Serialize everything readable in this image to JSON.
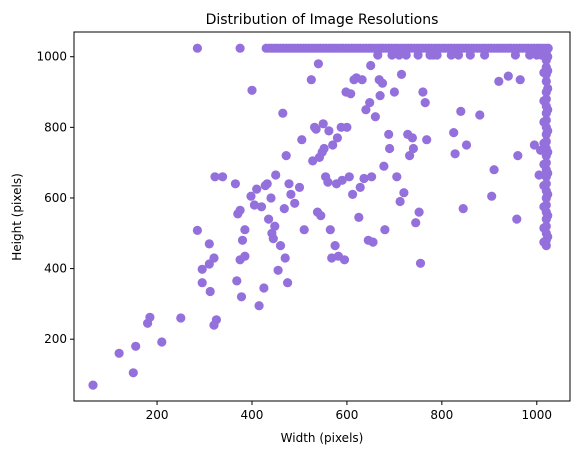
{
  "chart_data": {
    "type": "scatter",
    "title": "Distribution of Image Resolutions",
    "xlabel": "Width (pixels)",
    "ylabel": "Height (pixels)",
    "xlim": [
      25,
      1070
    ],
    "ylim": [
      25,
      1070
    ],
    "xticks": [
      200,
      400,
      600,
      800,
      1000
    ],
    "yticks": [
      200,
      400,
      600,
      800,
      1000
    ],
    "grid": false,
    "legend": "none",
    "marker_color": "#9370DB",
    "series": [
      {
        "points": [
          [
            65,
            70
          ],
          [
            120,
            160
          ],
          [
            150,
            105
          ],
          [
            155,
            180
          ],
          [
            180,
            245
          ],
          [
            185,
            262
          ],
          [
            210,
            192
          ],
          [
            250,
            260
          ],
          [
            285,
            508
          ],
          [
            295,
            360
          ],
          [
            295,
            398
          ],
          [
            310,
            413
          ],
          [
            310,
            470
          ],
          [
            312,
            335
          ],
          [
            320,
            430
          ],
          [
            320,
            240
          ],
          [
            325,
            255
          ],
          [
            322,
            660
          ],
          [
            338,
            660
          ],
          [
            365,
            640
          ],
          [
            368,
            365
          ],
          [
            370,
            555
          ],
          [
            375,
            565
          ],
          [
            375,
            425
          ],
          [
            378,
            320
          ],
          [
            380,
            480
          ],
          [
            385,
            510
          ],
          [
            385,
            435
          ],
          [
            398,
            605
          ],
          [
            400,
            905
          ],
          [
            405,
            580
          ],
          [
            410,
            625
          ],
          [
            415,
            295
          ],
          [
            420,
            575
          ],
          [
            425,
            345
          ],
          [
            428,
            635
          ],
          [
            432,
            640
          ],
          [
            435,
            540
          ],
          [
            440,
            600
          ],
          [
            442,
            500
          ],
          [
            445,
            485
          ],
          [
            448,
            520
          ],
          [
            450,
            665
          ],
          [
            455,
            395
          ],
          [
            460,
            465
          ],
          [
            465,
            840
          ],
          [
            468,
            570
          ],
          [
            470,
            430
          ],
          [
            472,
            720
          ],
          [
            475,
            360
          ],
          [
            478,
            640
          ],
          [
            482,
            610
          ],
          [
            490,
            585
          ],
          [
            500,
            630
          ],
          [
            505,
            765
          ],
          [
            510,
            510
          ],
          [
            525,
            935
          ],
          [
            528,
            705
          ],
          [
            532,
            800
          ],
          [
            535,
            795
          ],
          [
            538,
            560
          ],
          [
            540,
            980
          ],
          [
            542,
            715
          ],
          [
            545,
            550
          ],
          [
            548,
            730
          ],
          [
            550,
            810
          ],
          [
            552,
            740
          ],
          [
            555,
            660
          ],
          [
            560,
            645
          ],
          [
            562,
            790
          ],
          [
            565,
            510
          ],
          [
            568,
            430
          ],
          [
            570,
            750
          ],
          [
            575,
            465
          ],
          [
            578,
            640
          ],
          [
            580,
            770
          ],
          [
            582,
            435
          ],
          [
            588,
            800
          ],
          [
            590,
            650
          ],
          [
            595,
            425
          ],
          [
            598,
            900
          ],
          [
            600,
            800
          ],
          [
            605,
            660
          ],
          [
            608,
            895
          ],
          [
            612,
            610
          ],
          [
            615,
            935
          ],
          [
            620,
            940
          ],
          [
            625,
            545
          ],
          [
            628,
            630
          ],
          [
            632,
            935
          ],
          [
            636,
            655
          ],
          [
            640,
            850
          ],
          [
            645,
            480
          ],
          [
            648,
            870
          ],
          [
            650,
            975
          ],
          [
            652,
            660
          ],
          [
            655,
            475
          ],
          [
            660,
            830
          ],
          [
            665,
            1005
          ],
          [
            668,
            935
          ],
          [
            670,
            890
          ],
          [
            675,
            925
          ],
          [
            678,
            690
          ],
          [
            680,
            510
          ],
          [
            688,
            780
          ],
          [
            690,
            740
          ],
          [
            695,
            1005
          ],
          [
            700,
            900
          ],
          [
            705,
            660
          ],
          [
            710,
            1005
          ],
          [
            712,
            590
          ],
          [
            715,
            950
          ],
          [
            720,
            615
          ],
          [
            725,
            1005
          ],
          [
            728,
            780
          ],
          [
            732,
            720
          ],
          [
            738,
            770
          ],
          [
            740,
            740
          ],
          [
            745,
            530
          ],
          [
            750,
            1005
          ],
          [
            752,
            560
          ],
          [
            755,
            415
          ],
          [
            760,
            900
          ],
          [
            765,
            870
          ],
          [
            768,
            765
          ],
          [
            775,
            1005
          ],
          [
            782,
            1005
          ],
          [
            790,
            1005
          ],
          [
            820,
            1005
          ],
          [
            825,
            785
          ],
          [
            828,
            725
          ],
          [
            835,
            1005
          ],
          [
            840,
            845
          ],
          [
            845,
            570
          ],
          [
            852,
            750
          ],
          [
            860,
            1005
          ],
          [
            880,
            835
          ],
          [
            890,
            1005
          ],
          [
            905,
            605
          ],
          [
            910,
            680
          ],
          [
            920,
            930
          ],
          [
            940,
            945
          ],
          [
            955,
            1005
          ],
          [
            958,
            540
          ],
          [
            960,
            720
          ],
          [
            965,
            935
          ],
          [
            985,
            1005
          ],
          [
            995,
            750
          ],
          [
            1000,
            1005
          ],
          [
            1005,
            665
          ],
          [
            1008,
            735
          ],
          [
            1010,
            1005
          ],
          [
            1015,
            1005
          ],
          [
            1020,
            1010
          ],
          [
            1020,
            990
          ],
          [
            1020,
            970
          ],
          [
            1020,
            950
          ],
          [
            1020,
            930
          ],
          [
            1020,
            900
          ],
          [
            1020,
            880
          ],
          [
            1020,
            860
          ],
          [
            1020,
            840
          ],
          [
            1020,
            820
          ],
          [
            1020,
            800
          ],
          [
            1020,
            780
          ],
          [
            1020,
            760
          ],
          [
            1020,
            740
          ],
          [
            1020,
            720
          ],
          [
            1020,
            700
          ],
          [
            1020,
            680
          ],
          [
            1020,
            660
          ],
          [
            1020,
            640
          ],
          [
            1020,
            620
          ],
          [
            1020,
            600
          ],
          [
            1020,
            580
          ],
          [
            1020,
            560
          ],
          [
            1020,
            540
          ],
          [
            1020,
            520
          ],
          [
            1020,
            500
          ],
          [
            1020,
            480
          ],
          [
            1020,
            465
          ],
          [
            1023,
            1000
          ],
          [
            1023,
            960
          ],
          [
            1023,
            910
          ],
          [
            1023,
            850
          ],
          [
            1023,
            790
          ],
          [
            1023,
            730
          ],
          [
            1023,
            670
          ],
          [
            1023,
            610
          ],
          [
            1023,
            550
          ],
          [
            1023,
            490
          ],
          [
            1015,
            1015
          ],
          [
            1015,
            955
          ],
          [
            1015,
            875
          ],
          [
            1015,
            815
          ],
          [
            1015,
            755
          ],
          [
            1015,
            695
          ],
          [
            1015,
            635
          ],
          [
            1015,
            575
          ],
          [
            1015,
            515
          ],
          [
            1015,
            475
          ]
        ],
        "top_row_y": 1024,
        "top_row_x_range": [
          430,
          1024
        ],
        "top_row_extra_x": [
          285,
          375
        ]
      }
    ]
  }
}
